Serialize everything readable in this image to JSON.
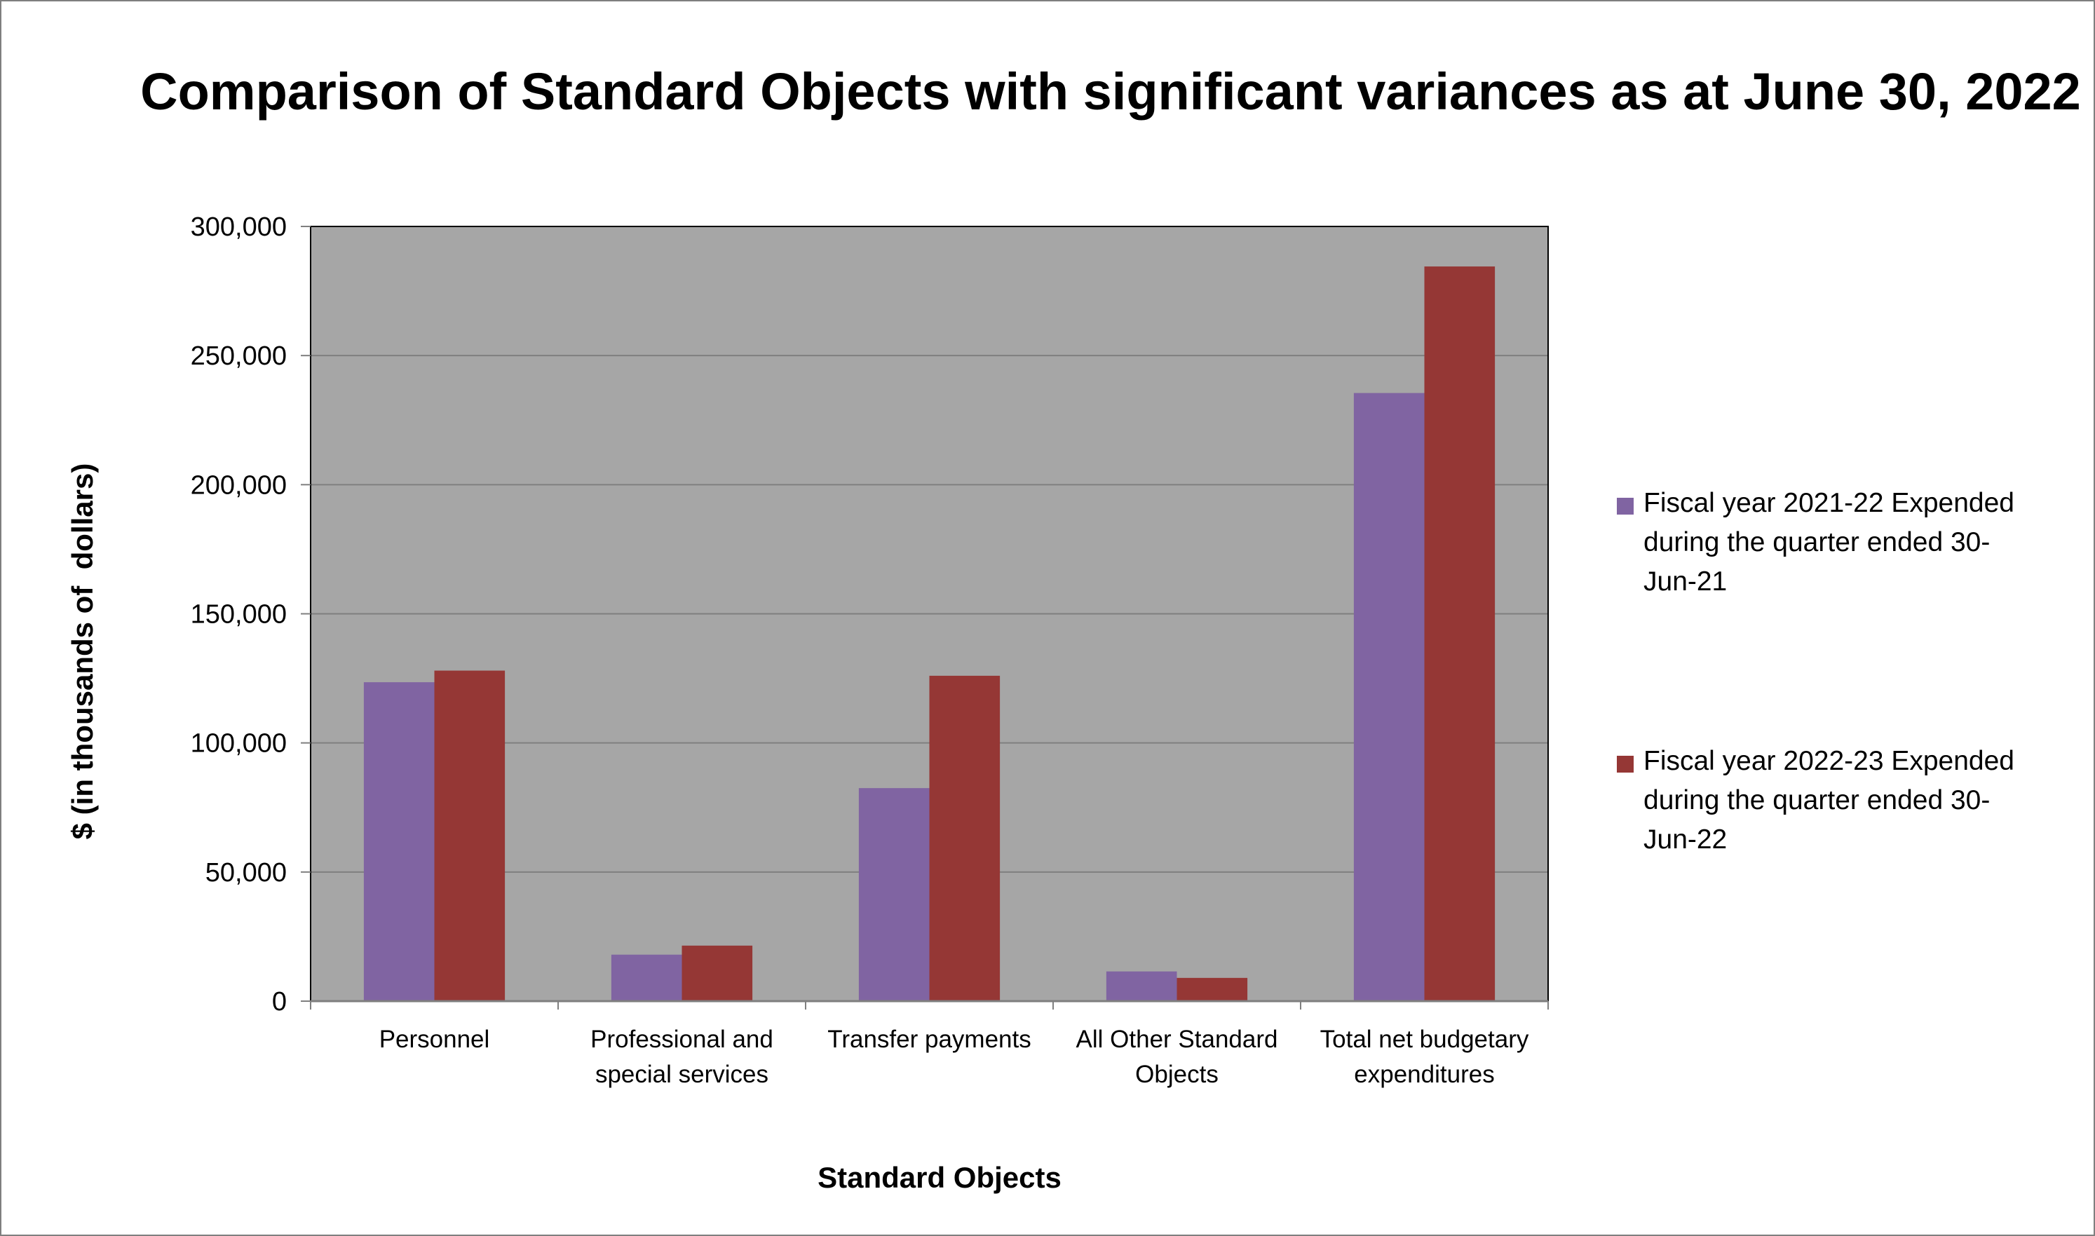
{
  "chart_data": {
    "type": "bar",
    "title": "Comparison of Standard Objects with significant variances as at June 30, 2022",
    "xlabel": "Standard Objects",
    "ylabel": "$ (in thousands of  dollars)",
    "categories": [
      [
        "Personnel"
      ],
      [
        "Professional and",
        "special services"
      ],
      [
        "Transfer payments"
      ],
      [
        "All Other Standard",
        "Objects"
      ],
      [
        "Total net budgetary",
        "expenditures"
      ]
    ],
    "series": [
      {
        "name": "Fiscal year 2021-22 Expended during the quarter ended 30-Jun-21",
        "color": "#8064a2",
        "values": [
          123500,
          18000,
          82500,
          11500,
          235500
        ]
      },
      {
        "name": "Fiscal year 2022-23 Expended during the quarter ended 30-Jun-22",
        "color": "#953735",
        "values": [
          128000,
          21500,
          126000,
          9000,
          284500
        ]
      }
    ],
    "ylim": [
      0,
      300000
    ],
    "yticks": [
      0,
      50000,
      100000,
      150000,
      200000,
      250000,
      300000
    ],
    "ytick_labels": [
      "0",
      "50,000",
      "100,000",
      "150,000",
      "200,000",
      "250,000",
      "300,000"
    ],
    "grid": true,
    "plot_background": "#a6a6a6",
    "legend_position": "right"
  },
  "legend": [
    {
      "label_lines": [
        "Fiscal year 2021-22 Expended",
        "during the quarter ended 30-",
        "Jun-21"
      ],
      "color": "#8064a2"
    },
    {
      "label_lines": [
        "Fiscal year 2022-23 Expended",
        "during the quarter ended 30-",
        "Jun-22"
      ],
      "color": "#953735"
    }
  ]
}
